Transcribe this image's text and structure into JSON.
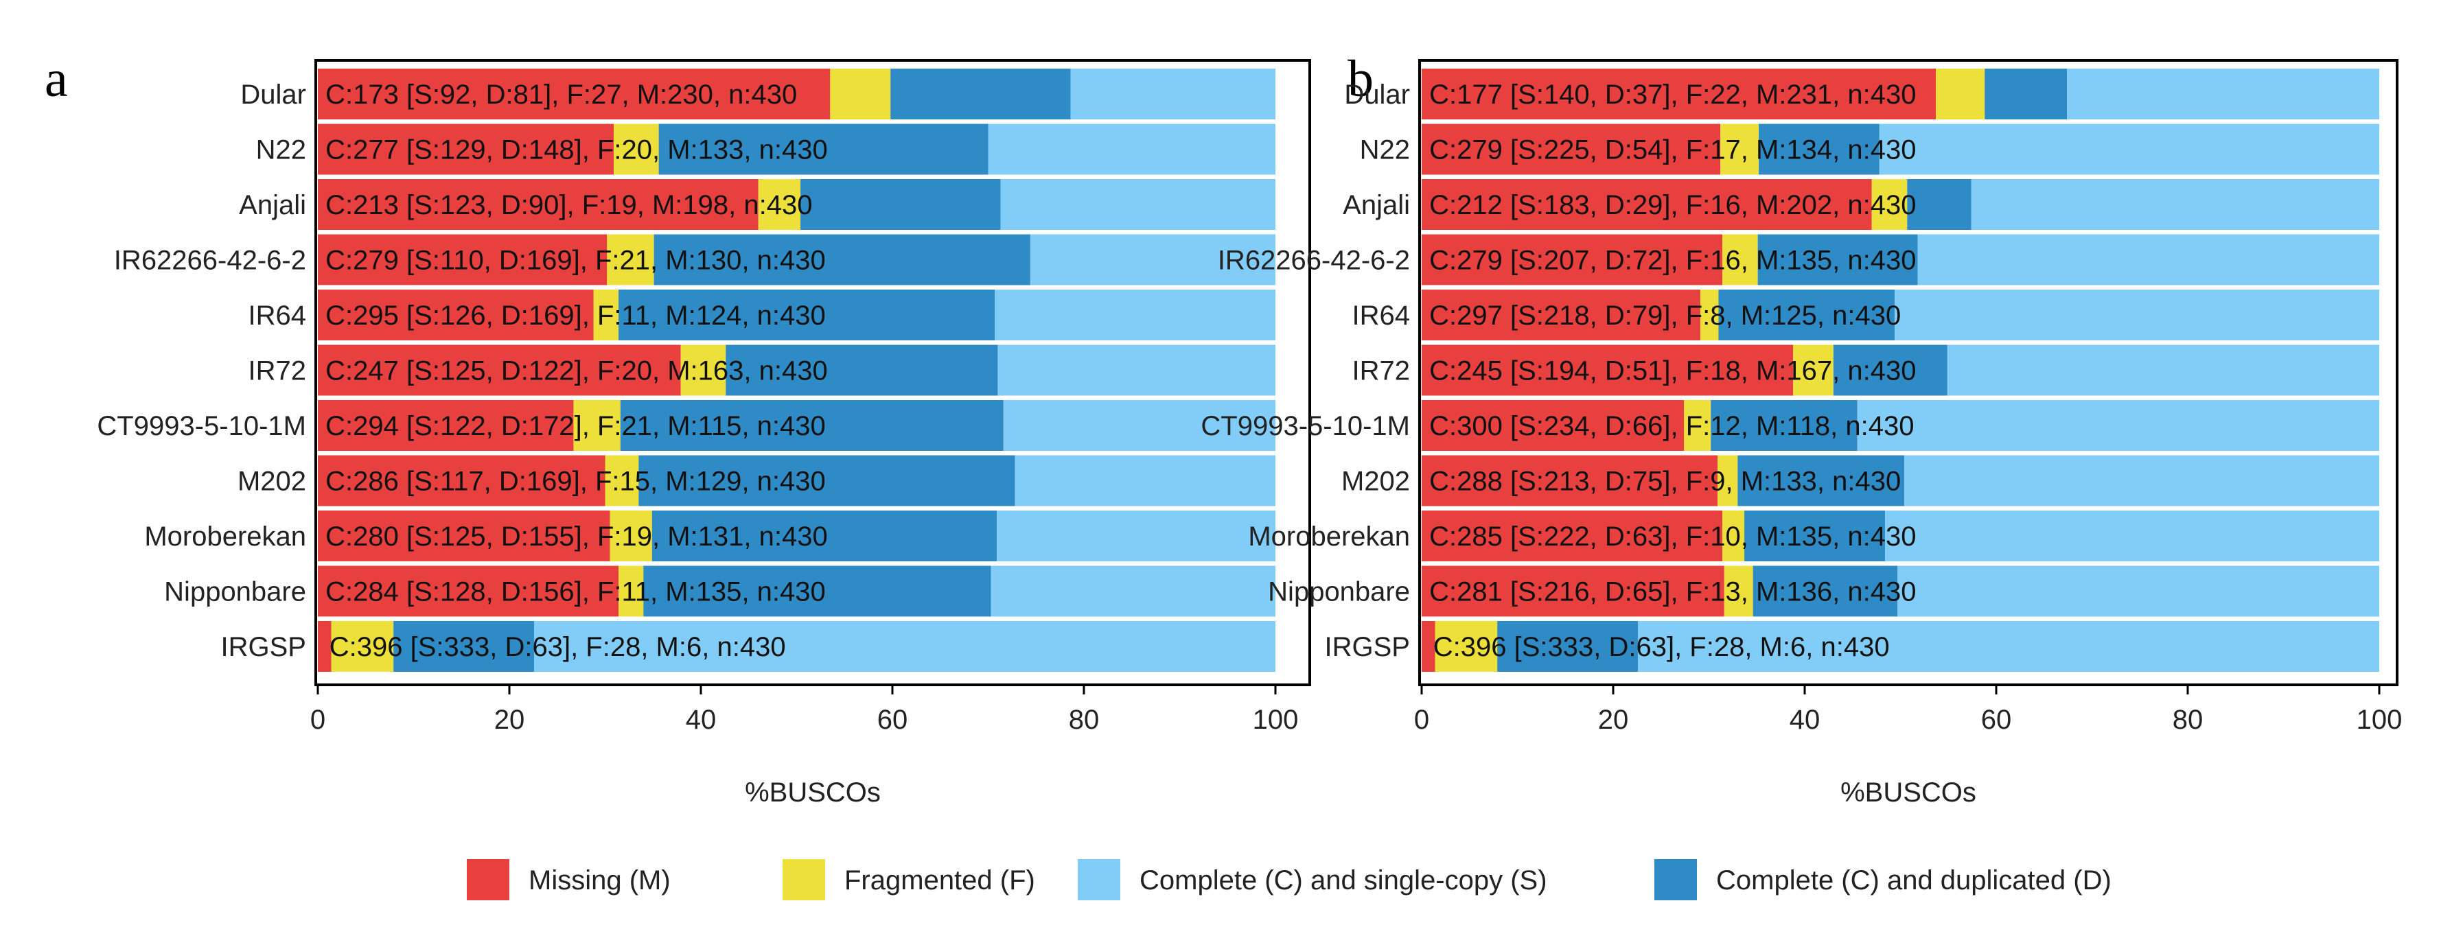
{
  "figure": {
    "x_label": "%BUSCOs",
    "colors": {
      "missing": "#e8403e",
      "fragmented": "#ede03a",
      "single": "#82cdf8",
      "duplicated": "#2f8bc6",
      "axis": "#000000"
    }
  },
  "legend": [
    {
      "key": "missing",
      "label": "Missing (M)"
    },
    {
      "key": "fragmented",
      "label": "Fragmented (F)"
    },
    {
      "key": "single",
      "label": "Complete (C) and single-copy (S)"
    },
    {
      "key": "duplicated",
      "label": "Complete (C) and duplicated (D)"
    }
  ],
  "chart_data": [
    {
      "type": "bar",
      "panel": "a",
      "orientation": "horizontal-stacked",
      "xlabel": "%BUSCOs",
      "xlim": [
        0,
        100
      ],
      "xticks": [
        0,
        20,
        40,
        60,
        80,
        100
      ],
      "categories": [
        "Dular",
        "N22",
        "Anjali",
        "IR62266-42-6-2",
        "IR64",
        "IR72",
        "CT9993-5-10-1M",
        "M202",
        "Moroberekan",
        "Nipponbare",
        "IRGSP"
      ],
      "series": [
        {
          "name": "Missing (M)",
          "key": "missing",
          "values": [
            53.5,
            30.9,
            46.0,
            30.2,
            28.8,
            37.9,
            26.7,
            30.0,
            30.5,
            31.4,
            1.4
          ]
        },
        {
          "name": "Fragmented (F)",
          "key": "fragmented",
          "values": [
            6.3,
            4.7,
            4.4,
            4.9,
            2.6,
            4.7,
            4.9,
            3.5,
            4.4,
            2.6,
            6.5
          ]
        },
        {
          "name": "Complete (C) and duplicated (D)",
          "key": "duplicated",
          "values": [
            18.8,
            34.4,
            20.9,
            39.3,
            39.3,
            28.4,
            40.0,
            39.3,
            36.0,
            36.3,
            14.7
          ]
        },
        {
          "name": "Complete (C) and single-copy (S)",
          "key": "single",
          "values": [
            21.4,
            30.0,
            28.7,
            25.6,
            29.3,
            29.0,
            28.4,
            27.2,
            29.1,
            29.7,
            77.4
          ]
        }
      ],
      "annotations": [
        "C:173 [S:92, D:81], F:27, M:230, n:430",
        "C:277 [S:129, D:148], F:20, M:133, n:430",
        "C:213 [S:123, D:90], F:19, M:198, n:430",
        "C:279 [S:110, D:169], F:21, M:130, n:430",
        "C:295 [S:126, D:169], F:11, M:124, n:430",
        "C:247 [S:125, D:122], F:20, M:163, n:430",
        "C:294 [S:122, D:172], F:21, M:115, n:430",
        "C:286 [S:117, D:169], F:15, M:129, n:430",
        "C:280 [S:125, D:155], F:19, M:131, n:430",
        "C:284 [S:128, D:156], F:11, M:135, n:430",
        "C:396 [S:333, D:63], F:28, M:6, n:430"
      ]
    },
    {
      "type": "bar",
      "panel": "b",
      "orientation": "horizontal-stacked",
      "xlabel": "%BUSCOs",
      "xlim": [
        0,
        100
      ],
      "xticks": [
        0,
        20,
        40,
        60,
        80,
        100
      ],
      "categories": [
        "Dular",
        "N22",
        "Anjali",
        "IR62266-42-6-2",
        "IR64",
        "IR72",
        "CT9993-5-10-1M",
        "M202",
        "Moroberekan",
        "Nipponbare",
        "IRGSP"
      ],
      "series": [
        {
          "name": "Missing (M)",
          "key": "missing",
          "values": [
            53.7,
            31.2,
            47.0,
            31.4,
            29.1,
            38.8,
            27.4,
            30.9,
            31.4,
            31.6,
            1.4
          ]
        },
        {
          "name": "Fragmented (F)",
          "key": "fragmented",
          "values": [
            5.1,
            4.0,
            3.7,
            3.7,
            1.9,
            4.2,
            2.8,
            2.1,
            2.3,
            3.0,
            6.5
          ]
        },
        {
          "name": "Complete (C) and duplicated (D)",
          "key": "duplicated",
          "values": [
            8.6,
            12.6,
            6.7,
            16.7,
            18.4,
            11.9,
            15.3,
            17.4,
            14.7,
            15.1,
            14.7
          ]
        },
        {
          "name": "Complete (C) and single-copy (S)",
          "key": "single",
          "values": [
            32.6,
            52.2,
            42.6,
            48.2,
            50.6,
            45.1,
            54.5,
            49.6,
            51.6,
            50.3,
            77.4
          ]
        }
      ],
      "annotations": [
        "C:177 [S:140, D:37], F:22, M:231, n:430",
        "C:279 [S:225, D:54], F:17, M:134, n:430",
        "C:212 [S:183, D:29], F:16, M:202, n:430",
        "C:279 [S:207, D:72], F:16, M:135, n:430",
        "C:297 [S:218, D:79], F:8, M:125, n:430",
        "C:245 [S:194, D:51], F:18, M:167, n:430",
        "C:300 [S:234, D:66], F:12, M:118, n:430",
        "C:288 [S:213, D:75], F:9, M:133, n:430",
        "C:285 [S:222, D:63], F:10, M:135, n:430",
        "C:281 [S:216, D:65], F:13, M:136, n:430",
        "C:396 [S:333, D:63], F:28, M:6, n:430"
      ]
    }
  ]
}
